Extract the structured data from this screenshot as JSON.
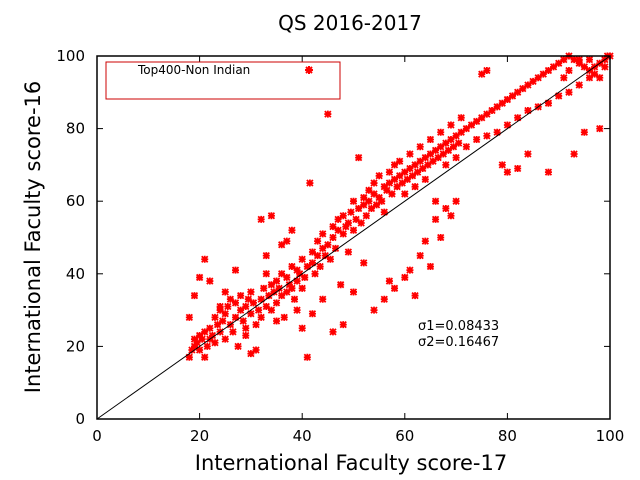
{
  "chart_data": {
    "type": "scatter",
    "title": "QS 2016-2017",
    "xlabel": "International Faculty score-17",
    "ylabel": "International Faculty score-16",
    "xlim": [
      0,
      100
    ],
    "ylim": [
      0,
      100
    ],
    "xticks": [
      "0",
      "20",
      "40",
      "60",
      "80",
      "100"
    ],
    "yticks": [
      "0",
      "20",
      "40",
      "60",
      "80",
      "100"
    ],
    "grid": false,
    "legend": {
      "placement": "top-left",
      "entries": [
        "Top400-Non Indian"
      ]
    },
    "annotations": [
      "σ1=0.08433",
      "σ2=0.16467"
    ],
    "colors": {
      "points": "#ff0000",
      "legend_border": "#cc0000",
      "diagonal": "#000000"
    },
    "reference_line": {
      "from": [
        0,
        0
      ],
      "to": [
        100,
        100
      ]
    },
    "series": [
      {
        "name": "Top400-Non Indian",
        "points": [
          [
            18,
            17
          ],
          [
            18.5,
            19
          ],
          [
            19,
            20
          ],
          [
            19,
            22
          ],
          [
            19.5,
            21
          ],
          [
            20,
            19
          ],
          [
            20,
            23
          ],
          [
            20.5,
            22
          ],
          [
            21,
            24
          ],
          [
            21,
            17
          ],
          [
            21.5,
            20
          ],
          [
            22,
            22
          ],
          [
            22,
            25
          ],
          [
            22.5,
            23
          ],
          [
            23,
            21
          ],
          [
            23,
            28
          ],
          [
            23.5,
            26
          ],
          [
            24,
            24
          ],
          [
            24,
            30
          ],
          [
            24.5,
            27
          ],
          [
            25,
            22
          ],
          [
            25,
            29
          ],
          [
            25.5,
            31
          ],
          [
            26,
            26
          ],
          [
            26,
            33
          ],
          [
            26.5,
            24
          ],
          [
            27,
            28
          ],
          [
            27,
            32
          ],
          [
            27.5,
            20
          ],
          [
            28,
            30
          ],
          [
            28,
            34
          ],
          [
            28.5,
            27
          ],
          [
            29,
            31
          ],
          [
            29,
            25
          ],
          [
            29.5,
            33
          ],
          [
            30,
            29
          ],
          [
            30,
            35
          ],
          [
            30.5,
            32
          ],
          [
            31,
            26
          ],
          [
            31,
            19
          ],
          [
            31.5,
            30
          ],
          [
            32,
            33
          ],
          [
            32,
            28
          ],
          [
            32.5,
            36
          ],
          [
            33,
            31
          ],
          [
            33,
            40
          ],
          [
            33.5,
            34
          ],
          [
            34,
            30
          ],
          [
            34,
            37
          ],
          [
            34.5,
            35
          ],
          [
            35,
            32
          ],
          [
            35,
            38
          ],
          [
            35.5,
            36
          ],
          [
            36,
            34
          ],
          [
            36,
            40
          ],
          [
            36.5,
            28
          ],
          [
            37,
            35
          ],
          [
            37,
            39
          ],
          [
            37.5,
            37
          ],
          [
            38,
            36
          ],
          [
            38,
            42
          ],
          [
            38.5,
            33
          ],
          [
            39,
            38
          ],
          [
            39,
            41
          ],
          [
            39.5,
            40
          ],
          [
            40,
            36
          ],
          [
            40,
            44
          ],
          [
            40.5,
            39
          ],
          [
            41,
            42
          ],
          [
            41,
            17
          ],
          [
            41.5,
            65
          ],
          [
            42,
            43
          ],
          [
            42,
            46
          ],
          [
            42.5,
            40
          ],
          [
            43,
            45
          ],
          [
            43,
            49
          ],
          [
            43.5,
            42
          ],
          [
            44,
            47
          ],
          [
            44,
            51
          ],
          [
            44.5,
            45
          ],
          [
            45,
            48
          ],
          [
            45,
            84
          ],
          [
            45.5,
            44
          ],
          [
            46,
            50
          ],
          [
            46,
            53
          ],
          [
            46.5,
            47
          ],
          [
            47,
            52
          ],
          [
            47,
            55
          ],
          [
            47.5,
            37
          ],
          [
            48,
            51
          ],
          [
            48,
            56
          ],
          [
            48.5,
            53
          ],
          [
            49,
            54
          ],
          [
            49,
            46
          ],
          [
            49.5,
            57
          ],
          [
            50,
            52
          ],
          [
            50,
            60
          ],
          [
            50.5,
            55
          ],
          [
            51,
            58
          ],
          [
            51,
            72
          ],
          [
            51.5,
            54
          ],
          [
            52,
            59
          ],
          [
            52,
            61
          ],
          [
            52.5,
            56
          ],
          [
            53,
            60
          ],
          [
            53,
            63
          ],
          [
            53.5,
            58
          ],
          [
            54,
            62
          ],
          [
            54,
            65
          ],
          [
            54.5,
            59
          ],
          [
            55,
            61
          ],
          [
            55,
            67
          ],
          [
            55.5,
            60
          ],
          [
            56,
            64
          ],
          [
            56,
            57
          ],
          [
            56.5,
            63
          ],
          [
            57,
            65
          ],
          [
            57,
            68
          ],
          [
            57.5,
            62
          ],
          [
            58,
            66
          ],
          [
            58,
            70
          ],
          [
            58.5,
            64
          ],
          [
            59,
            67
          ],
          [
            59,
            71
          ],
          [
            59.5,
            65
          ],
          [
            60,
            68
          ],
          [
            60,
            62
          ],
          [
            60.5,
            66
          ],
          [
            61,
            69
          ],
          [
            61,
            73
          ],
          [
            61.5,
            67
          ],
          [
            62,
            70
          ],
          [
            62,
            64
          ],
          [
            62.5,
            68
          ],
          [
            63,
            71
          ],
          [
            63,
            75
          ],
          [
            63.5,
            69
          ],
          [
            64,
            72
          ],
          [
            64,
            66
          ],
          [
            64.5,
            70
          ],
          [
            65,
            73
          ],
          [
            65,
            77
          ],
          [
            65.5,
            71
          ],
          [
            66,
            74
          ],
          [
            66,
            60
          ],
          [
            66.5,
            72
          ],
          [
            67,
            75
          ],
          [
            67,
            79
          ],
          [
            67.5,
            73
          ],
          [
            68,
            76
          ],
          [
            68,
            70
          ],
          [
            68.5,
            74
          ],
          [
            69,
            77
          ],
          [
            69,
            81
          ],
          [
            69.5,
            75
          ],
          [
            70,
            78
          ],
          [
            70,
            72
          ],
          [
            70.5,
            76
          ],
          [
            71,
            79
          ],
          [
            71,
            83
          ],
          [
            72,
            80
          ],
          [
            73,
            81
          ],
          [
            74,
            82
          ],
          [
            75,
            83
          ],
          [
            76,
            84
          ],
          [
            77,
            85
          ],
          [
            78,
            86
          ],
          [
            79,
            87
          ],
          [
            80,
            88
          ],
          [
            81,
            89
          ],
          [
            82,
            90
          ],
          [
            83,
            91
          ],
          [
            84,
            92
          ],
          [
            85,
            93
          ],
          [
            86,
            94
          ],
          [
            87,
            95
          ],
          [
            88,
            96
          ],
          [
            89,
            97
          ],
          [
            90,
            98
          ],
          [
            91,
            99
          ],
          [
            92,
            100
          ],
          [
            93,
            99
          ],
          [
            94,
            98
          ],
          [
            95,
            97
          ],
          [
            96,
            96
          ],
          [
            97,
            95
          ],
          [
            98,
            94
          ],
          [
            99,
            99
          ],
          [
            99.5,
            100
          ],
          [
            100,
            100
          ],
          [
            75,
            95
          ],
          [
            76,
            96
          ],
          [
            79,
            70
          ],
          [
            80,
            68
          ],
          [
            82,
            69
          ],
          [
            84,
            73
          ],
          [
            88,
            68
          ],
          [
            93,
            73
          ],
          [
            95,
            79
          ],
          [
            98,
            80
          ],
          [
            18,
            28
          ],
          [
            19,
            34
          ],
          [
            20,
            39
          ],
          [
            21,
            44
          ],
          [
            22,
            38
          ],
          [
            24,
            31
          ],
          [
            25,
            35
          ],
          [
            27,
            41
          ],
          [
            29,
            23
          ],
          [
            30,
            18
          ],
          [
            32,
            55
          ],
          [
            33,
            45
          ],
          [
            34,
            56
          ],
          [
            35,
            27
          ],
          [
            36,
            48
          ],
          [
            37,
            49
          ],
          [
            38,
            52
          ],
          [
            39,
            30
          ],
          [
            40,
            25
          ],
          [
            42,
            29
          ],
          [
            44,
            33
          ],
          [
            46,
            24
          ],
          [
            48,
            26
          ],
          [
            50,
            35
          ],
          [
            52,
            43
          ],
          [
            54,
            30
          ],
          [
            56,
            33
          ],
          [
            57,
            38
          ],
          [
            58,
            36
          ],
          [
            60,
            39
          ],
          [
            61,
            41
          ],
          [
            62,
            34
          ],
          [
            63,
            45
          ],
          [
            64,
            49
          ],
          [
            65,
            42
          ],
          [
            66,
            55
          ],
          [
            67,
            50
          ],
          [
            68,
            58
          ],
          [
            69,
            56
          ],
          [
            70,
            60
          ],
          [
            72,
            75
          ],
          [
            74,
            77
          ],
          [
            76,
            78
          ],
          [
            78,
            79
          ],
          [
            80,
            81
          ],
          [
            82,
            83
          ],
          [
            84,
            85
          ],
          [
            86,
            86
          ],
          [
            88,
            87
          ],
          [
            90,
            89
          ],
          [
            92,
            90
          ],
          [
            94,
            92
          ],
          [
            96,
            94
          ],
          [
            97,
            97
          ],
          [
            98,
            98
          ],
          [
            99,
            97
          ],
          [
            96,
            99
          ],
          [
            94,
            99
          ],
          [
            92,
            96
          ],
          [
            91,
            94
          ]
        ]
      }
    ]
  }
}
